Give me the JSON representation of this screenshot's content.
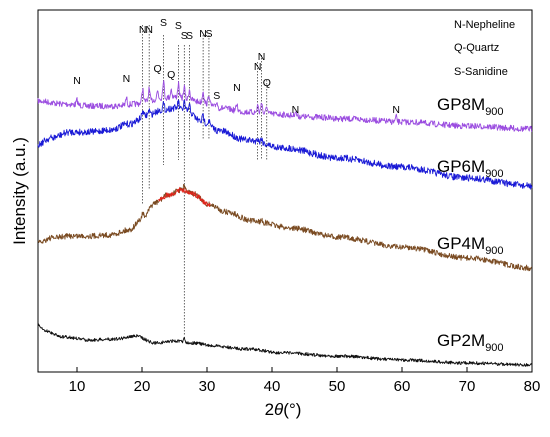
{
  "chart_data": {
    "type": "line",
    "xlabel_main": "2",
    "xlabel_theta": "θ",
    "xlabel_unit": "(°)",
    "ylabel": "Intensity (a.u.)",
    "xlim": [
      4,
      80
    ],
    "x_ticks": [
      10,
      20,
      30,
      40,
      50,
      60,
      70,
      80
    ],
    "legend": [
      {
        "label": "N-Nepheline"
      },
      {
        "label": "Q-Quartz"
      },
      {
        "label": "S-Sanidine"
      }
    ],
    "series": [
      {
        "label_base": "GP8M",
        "label_sub": "900",
        "color": "#9b4de0",
        "points": [
          [
            4,
            101
          ],
          [
            8,
            104
          ],
          [
            12,
            106
          ],
          [
            16,
            106
          ],
          [
            19,
            104
          ],
          [
            21,
            101
          ],
          [
            23,
            98
          ],
          [
            25,
            97
          ],
          [
            27,
            99
          ],
          [
            29,
            102
          ],
          [
            32,
            108
          ],
          [
            36,
            112
          ],
          [
            40,
            114
          ],
          [
            46,
            117
          ],
          [
            52,
            119
          ],
          [
            60,
            122
          ],
          [
            70,
            126
          ],
          [
            80,
            129
          ]
        ]
      },
      {
        "label_base": "GP6M",
        "label_sub": "900",
        "color": "#1a1ad6",
        "points": [
          [
            4,
            144
          ],
          [
            6,
            138
          ],
          [
            9,
            132
          ],
          [
            12,
            132
          ],
          [
            15,
            130
          ],
          [
            18,
            124
          ],
          [
            21,
            115
          ],
          [
            23,
            110
          ],
          [
            25,
            108
          ],
          [
            27,
            111
          ],
          [
            29,
            121
          ],
          [
            32,
            131
          ],
          [
            36,
            140
          ],
          [
            42,
            148
          ],
          [
            50,
            158
          ],
          [
            60,
            167
          ],
          [
            70,
            178
          ],
          [
            80,
            186
          ]
        ]
      },
      {
        "label_base": "GP4M",
        "label_sub": "900",
        "color": "#7a4b22",
        "points": [
          [
            4,
            243
          ],
          [
            6,
            238
          ],
          [
            9,
            236
          ],
          [
            12,
            236
          ],
          [
            15,
            235
          ],
          [
            18,
            230
          ],
          [
            20,
            219
          ],
          [
            22,
            203
          ],
          [
            24,
            195
          ],
          [
            26,
            190
          ],
          [
            28,
            194
          ],
          [
            30,
            204
          ],
          [
            33,
            212
          ],
          [
            37,
            221
          ],
          [
            43,
            228
          ],
          [
            50,
            237
          ],
          [
            60,
            247
          ],
          [
            70,
            258
          ],
          [
            80,
            268
          ]
        ]
      },
      {
        "label_base": "GP2M",
        "label_sub": "900",
        "color": "#111111",
        "points": [
          [
            4,
            325
          ],
          [
            5,
            331
          ],
          [
            8,
            337
          ],
          [
            12,
            340
          ],
          [
            16,
            339
          ],
          [
            19,
            336
          ],
          [
            22,
            343
          ],
          [
            25,
            341
          ],
          [
            28,
            343
          ],
          [
            31,
            346
          ],
          [
            36,
            349
          ],
          [
            42,
            353
          ],
          [
            50,
            356
          ],
          [
            60,
            360
          ],
          [
            70,
            363
          ],
          [
            80,
            365
          ]
        ]
      }
    ],
    "peaks": [
      {
        "x": 10.0,
        "label": "N"
      },
      {
        "x": 17.6,
        "label": "N"
      },
      {
        "x": 20.1,
        "label": "N"
      },
      {
        "x": 21.1,
        "label": "N"
      },
      {
        "x": 22.4,
        "label": "Q"
      },
      {
        "x": 23.3,
        "label": "S"
      },
      {
        "x": 24.5,
        "label": "Q"
      },
      {
        "x": 25.6,
        "label": "S"
      },
      {
        "x": 26.5,
        "label": "S"
      },
      {
        "x": 27.3,
        "label": "S"
      },
      {
        "x": 29.4,
        "label": "N"
      },
      {
        "x": 30.3,
        "label": "S"
      },
      {
        "x": 31.5,
        "label": "S"
      },
      {
        "x": 34.6,
        "label": "N"
      },
      {
        "x": 37.8,
        "label": "N"
      },
      {
        "x": 38.4,
        "label": "N"
      },
      {
        "x": 39.2,
        "label": "Q"
      },
      {
        "x": 43.6,
        "label": "N"
      },
      {
        "x": 59.1,
        "label": "N"
      }
    ]
  }
}
